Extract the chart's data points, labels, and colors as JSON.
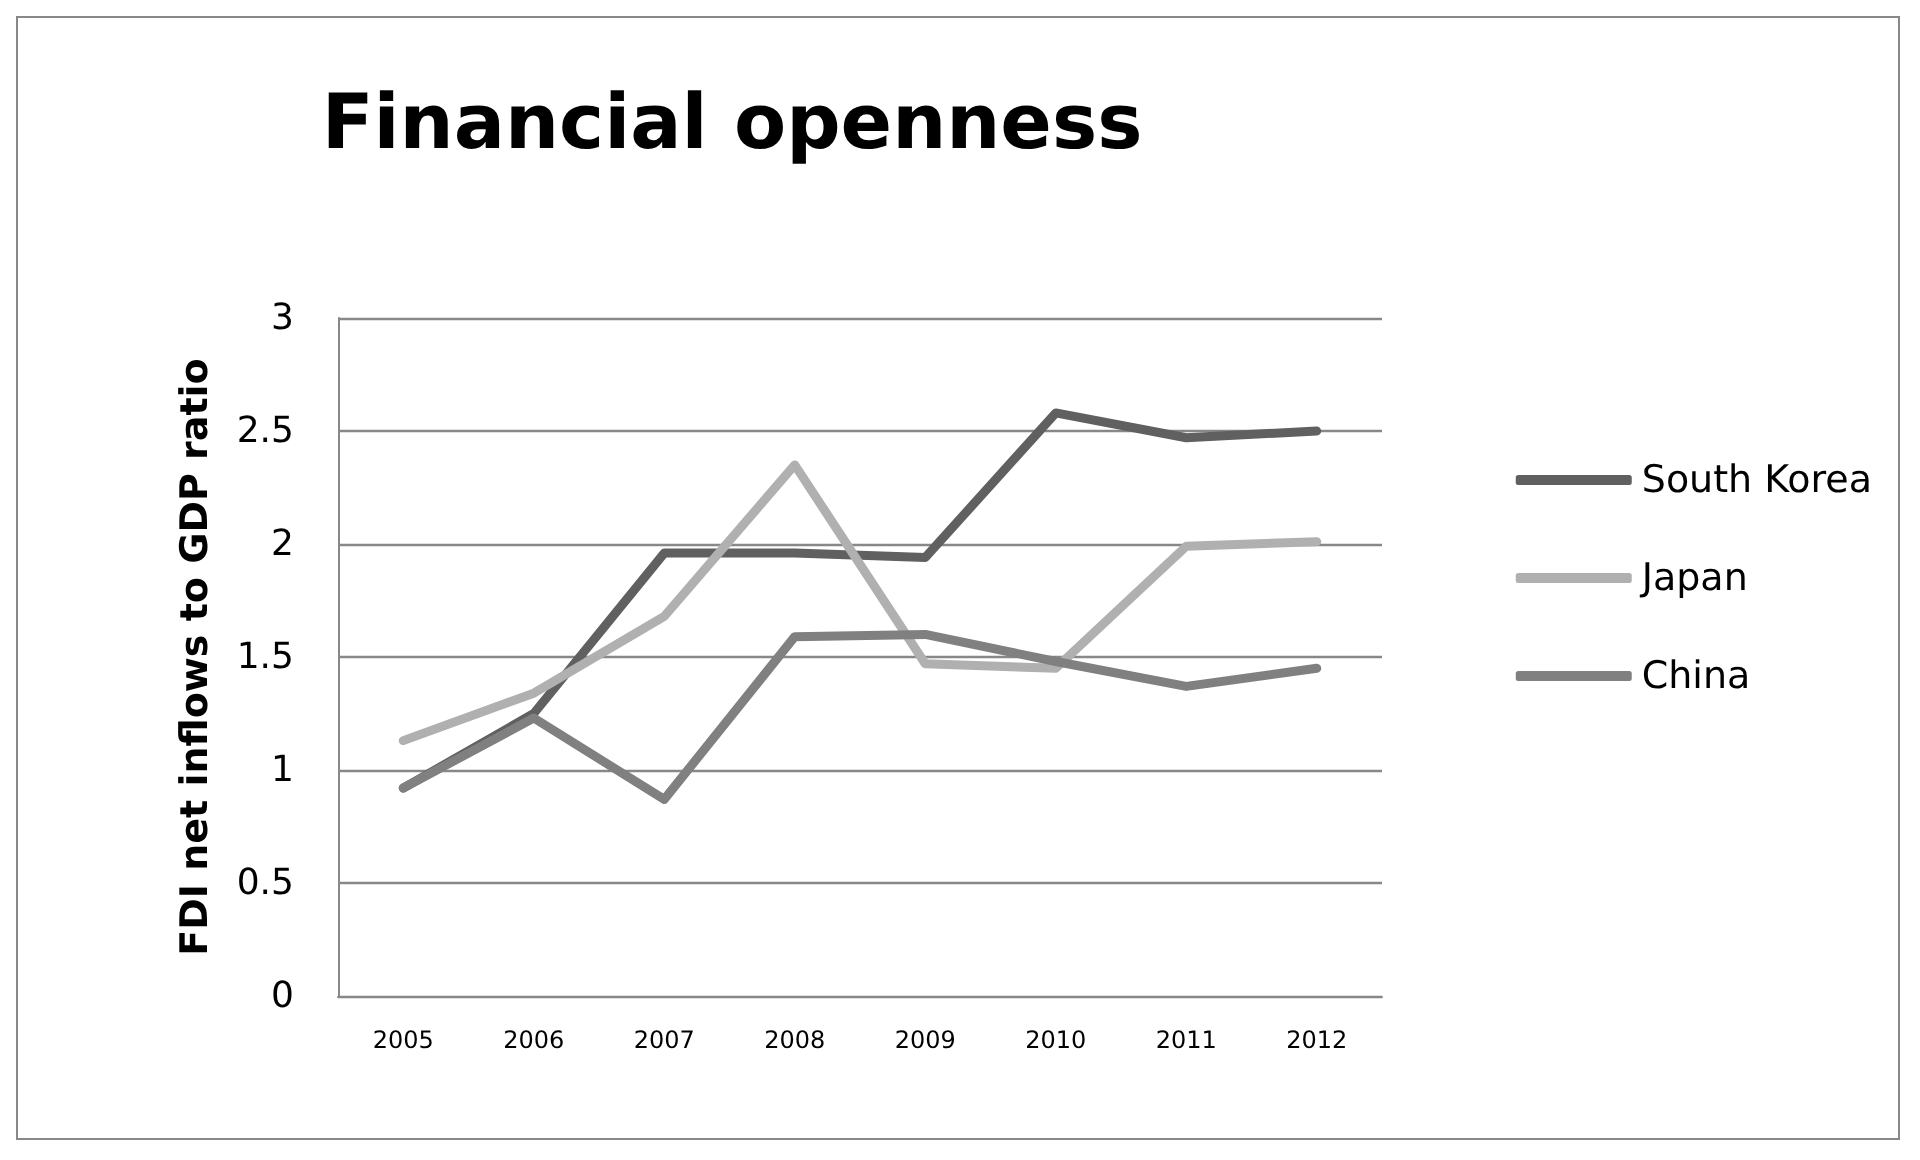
{
  "chart_data": {
    "type": "line",
    "title": "Financial openness",
    "ylabel": "FDI net inflows to GDP ratio",
    "categories": [
      "2005",
      "2006",
      "2007",
      "2008",
      "2009",
      "2010",
      "2011",
      "2012"
    ],
    "series": [
      {
        "name": "South Korea",
        "color": "#606060",
        "values": [
          0.92,
          1.25,
          1.96,
          1.96,
          1.94,
          2.58,
          2.47,
          2.5
        ]
      },
      {
        "name": "Japan",
        "color": "#b0b0b0",
        "values": [
          1.13,
          1.34,
          1.68,
          2.35,
          1.47,
          1.45,
          1.99,
          2.01
        ]
      },
      {
        "name": "China",
        "color": "#808080",
        "values": [
          0.92,
          1.23,
          0.87,
          1.59,
          1.6,
          1.48,
          1.37,
          1.45
        ]
      }
    ],
    "ylim": [
      0,
      3
    ],
    "yticks": [
      0,
      0.5,
      1,
      1.5,
      2,
      2.5,
      3
    ],
    "grid": "y",
    "legend": "right",
    "marker": "none",
    "line_style": "solid"
  }
}
